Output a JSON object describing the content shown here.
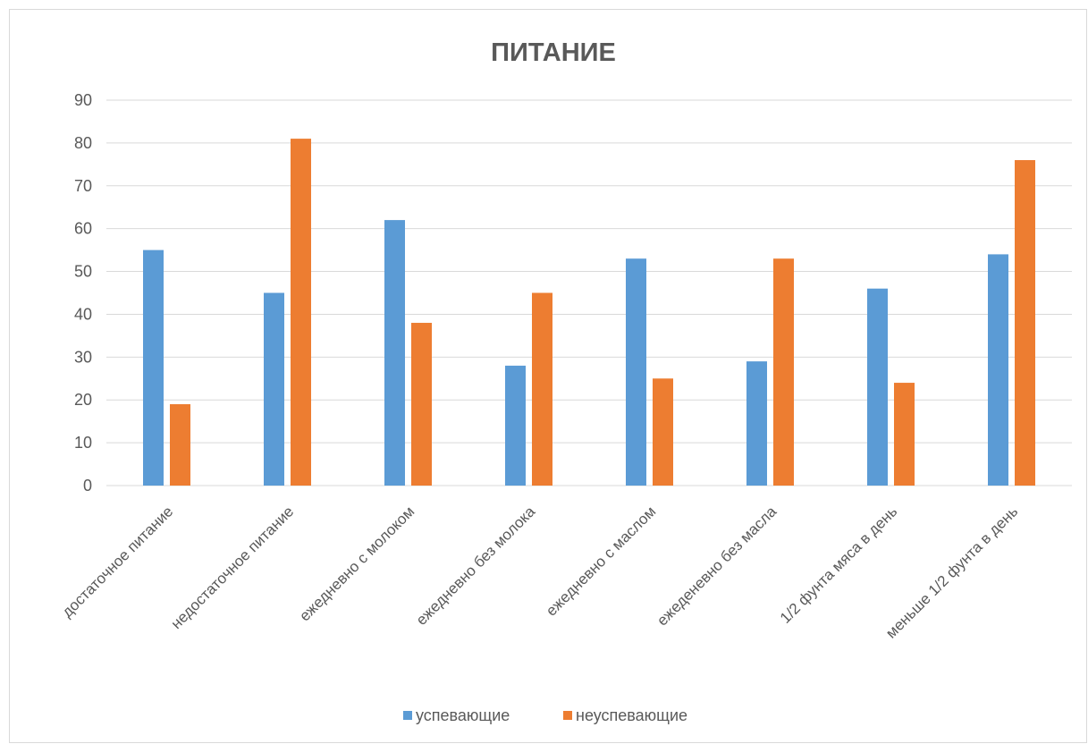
{
  "chart_data": {
    "type": "bar",
    "title": "ПИТАНИЕ",
    "xlabel": "",
    "ylabel": "",
    "ylim": [
      0,
      90
    ],
    "yticks": [
      0,
      10,
      20,
      30,
      40,
      50,
      60,
      70,
      80,
      90
    ],
    "grid": true,
    "legend_position": "bottom",
    "categories": [
      "достаточное питание",
      "недостаточное питание",
      "ежедневно с молоком",
      "ежедневно без молока",
      "ежедневно с маслом",
      "ежеденевно без масла",
      "1/2 фунта мяса в день",
      "меньше 1/2 фунта в день"
    ],
    "series": [
      {
        "name": "успевающие",
        "color": "#5b9bd5",
        "values": [
          55,
          45,
          62,
          28,
          53,
          29,
          46,
          54
        ]
      },
      {
        "name": "неуспевающие",
        "color": "#ed7d31",
        "values": [
          19,
          81,
          38,
          45,
          25,
          53,
          24,
          76
        ]
      }
    ]
  }
}
